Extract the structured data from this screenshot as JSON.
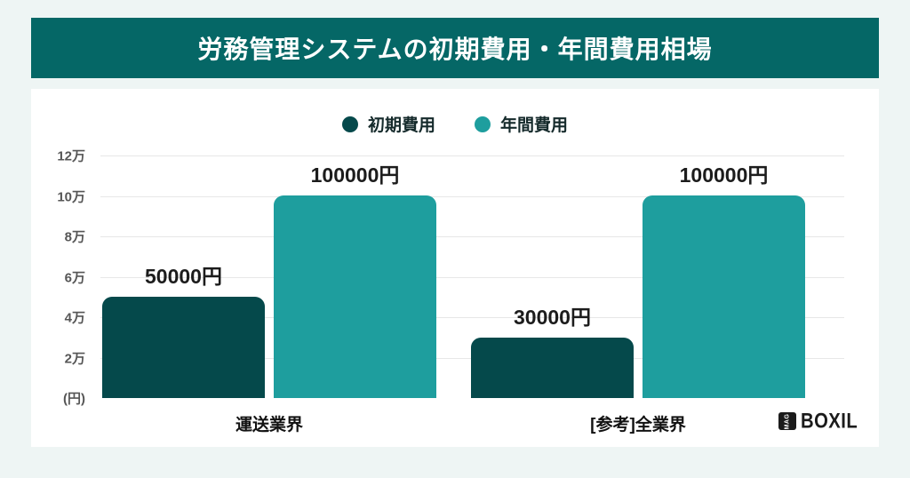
{
  "page": {
    "background_color": "#eef5f4",
    "card_color": "#ffffff"
  },
  "header": {
    "title": "労務管理システムの初期費用・年間費用相場",
    "background_color": "#056766",
    "text_color": "#ffffff"
  },
  "chart_data": {
    "type": "bar",
    "title": "労務管理システムの初期費用・年間費用相場",
    "categories": [
      "運送業界",
      "[参考]全業界"
    ],
    "series": [
      {
        "name": "初期費用",
        "color": "#05494b",
        "values": [
          50000,
          30000
        ],
        "labels": [
          "50000円",
          "30000円"
        ]
      },
      {
        "name": "年間費用",
        "color": "#1e9e9e",
        "values": [
          100000,
          100000
        ],
        "labels": [
          "100000円",
          "100000円"
        ]
      }
    ],
    "y_axis": {
      "ticks": [
        "12万",
        "10万",
        "8万",
        "6万",
        "4万",
        "2万"
      ],
      "tick_values": [
        120000,
        100000,
        80000,
        60000,
        40000,
        20000
      ],
      "unit_label": "(円)",
      "max": 120000,
      "step": 20000
    },
    "xlabel": "",
    "ylabel": "(円)",
    "ylim": [
      0,
      120000
    ],
    "grid": true,
    "legend_position": "top",
    "gridline_color": "#e7e7e7"
  },
  "footer": {
    "logo_box_text": "MAG",
    "logo_text": "BOXIL"
  }
}
